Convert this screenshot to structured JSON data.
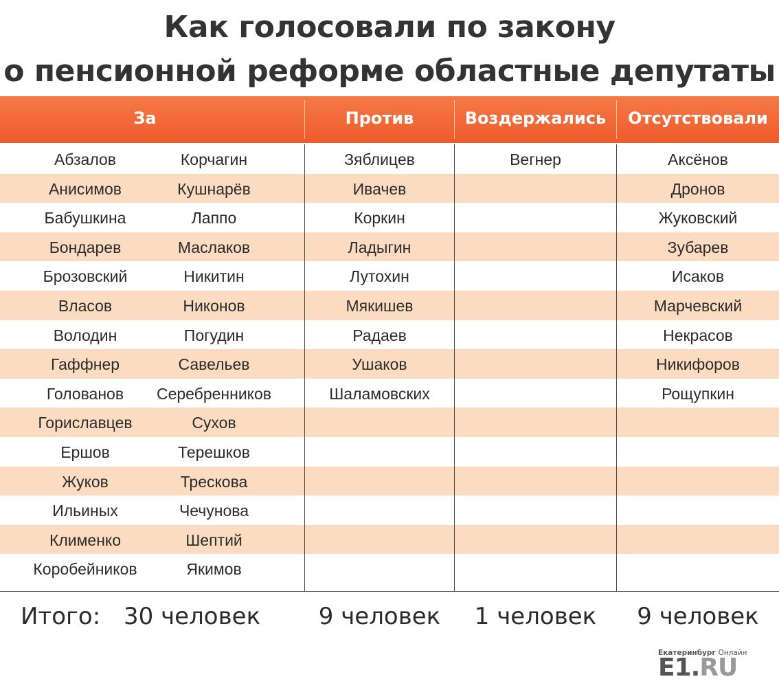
{
  "title": {
    "line1": "Как голосовали по закону",
    "line2": "о пенсионной реформе областные депутаты"
  },
  "headers": {
    "za": "За",
    "protiv": "Против",
    "vozderzhalis": "Воздержались",
    "otsutstvovali": "Отсутствовали"
  },
  "columns": {
    "za_1": [
      "Абзалов",
      "Анисимов",
      "Бабушкина",
      "Бондарев",
      "Брозовский",
      "Власов",
      "Володин",
      "Гаффнер",
      "Голованов",
      "Гориславцев",
      "Ершов",
      "Жуков",
      "Ильиных",
      "Клименко",
      "Коробейников"
    ],
    "za_2": [
      "Корчагин",
      "Кушнарёв",
      "Лаппо",
      "Маслаков",
      "Никитин",
      "Никонов",
      "Погудин",
      "Савельев",
      "Серебренников",
      "Сухов",
      "Терешков",
      "Трескова",
      "Чечунова",
      "Шептий",
      "Якимов"
    ],
    "protiv": [
      "Зяблицев",
      "Ивачев",
      "Коркин",
      "Ладыгин",
      "Лутохин",
      "Мякишев",
      "Радаев",
      "Ушаков",
      "Шаламовских"
    ],
    "vozderzhalis": [
      "Вегнер"
    ],
    "otsutstvovali": [
      "Аксёнов",
      "Дронов",
      "Жуковский",
      "Зубарев",
      "Исаков",
      "Марчевский",
      "Некрасов",
      "Никифоров",
      "Рощупкин"
    ]
  },
  "totals": {
    "label": "Итого:",
    "za": "30 человек",
    "protiv": "9 человек",
    "vozderzhalis": "1 человек",
    "otsutstvovali": "9 человек"
  },
  "logo": {
    "city": "Екатеринбург",
    "online": "Онлайн",
    "brand": "E1.",
    "domain": "RU"
  },
  "colors": {
    "header_orange": "#ef5a2c",
    "row_stripe": "#fcdcc0"
  }
}
